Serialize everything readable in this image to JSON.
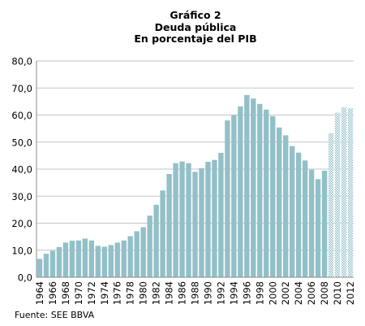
{
  "chart_data": {
    "type": "bar",
    "title": "Gráfico 2",
    "subtitle": [
      "Deuda pública",
      "En porcentaje del PIB"
    ],
    "source": "Fuente: SEE BBVA",
    "ylim": [
      0,
      80
    ],
    "yticks": [
      "0,0",
      "10,0",
      "20,0",
      "30,0",
      "40,0",
      "50,0",
      "60,0",
      "70,0",
      "80,0"
    ],
    "x_tick_labels": [
      "1964",
      "1966",
      "1968",
      "1970",
      "1972",
      "1974",
      "1976",
      "1978",
      "1980",
      "1982",
      "1984",
      "1986",
      "1988",
      "1990",
      "1992",
      "1994",
      "1996",
      "1998",
      "2000",
      "2002",
      "2004",
      "2006",
      "2008",
      "2010",
      "2012"
    ],
    "grid": "horizontal",
    "categories": [
      1964,
      1965,
      1966,
      1967,
      1968,
      1969,
      1970,
      1971,
      1972,
      1973,
      1974,
      1975,
      1976,
      1977,
      1978,
      1979,
      1980,
      1981,
      1982,
      1983,
      1984,
      1985,
      1986,
      1987,
      1988,
      1989,
      1990,
      1991,
      1992,
      1993,
      1994,
      1995,
      1996,
      1997,
      1998,
      1999,
      2000,
      2001,
      2002,
      2003,
      2004,
      2005,
      2006,
      2007,
      2008,
      2009,
      2010,
      2011,
      2012
    ],
    "series": [
      {
        "values": [
          6.8,
          8.7,
          9.8,
          11.2,
          12.8,
          13.5,
          13.6,
          14.3,
          13.6,
          11.6,
          11.3,
          11.9,
          12.8,
          13.6,
          15.2,
          17.0,
          18.5,
          22.8,
          26.8,
          32.1,
          38.2,
          42.2,
          42.8,
          42.2,
          39.0,
          40.3,
          42.7,
          43.4,
          46.0,
          58.0,
          60.0,
          63.2,
          67.4,
          66.1,
          64.1,
          62.0,
          59.6,
          55.4,
          52.5,
          48.5,
          46.1,
          43.2,
          39.8,
          36.3,
          39.4,
          53.3,
          60.9,
          62.9,
          62.5
        ],
        "color": "#93c0c8",
        "forecast_from": 2009
      }
    ]
  }
}
